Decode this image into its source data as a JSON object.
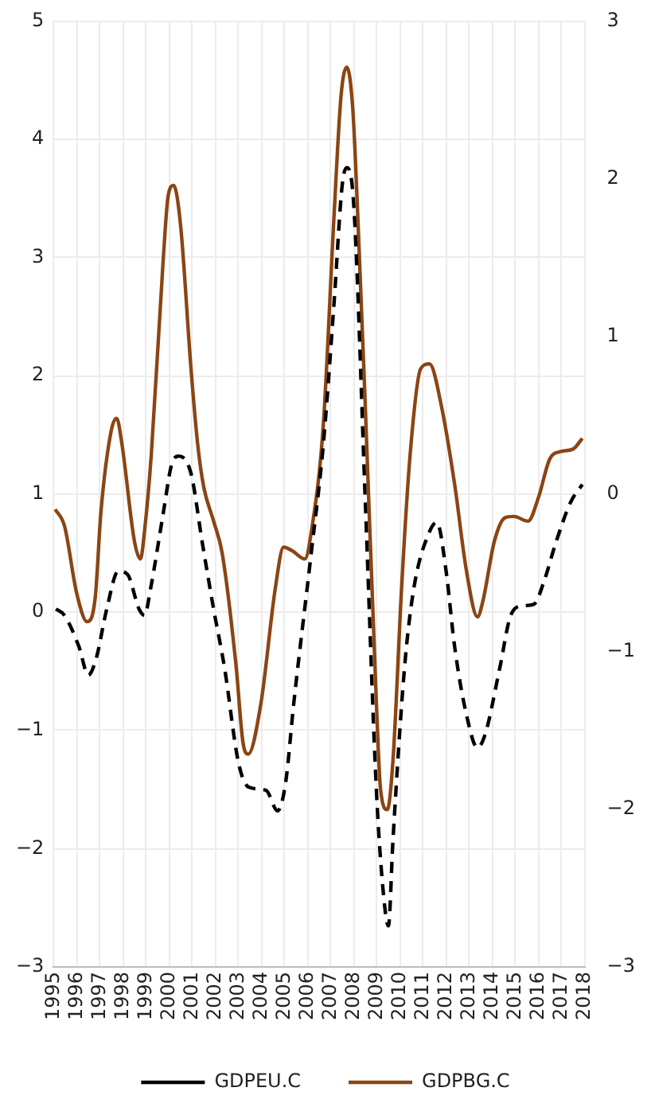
{
  "chart_data": {
    "type": "line",
    "xlim": [
      1995,
      2018
    ],
    "xticks": [
      1995,
      1996,
      1997,
      1998,
      1999,
      2000,
      2001,
      2002,
      2003,
      2004,
      2005,
      2006,
      2007,
      2008,
      2009,
      2010,
      2011,
      2012,
      2013,
      2014,
      2015,
      2016,
      2017,
      2018
    ],
    "ylim": [
      -3,
      5
    ],
    "yticks": [
      5,
      4,
      3,
      2,
      1,
      0,
      {
        "value": -1,
        "label": "−1"
      },
      {
        "value": -2,
        "label": "−2"
      },
      {
        "value": -3,
        "label": "−3"
      }
    ],
    "y2lim": [
      -3,
      3
    ],
    "y2ticks": [
      3,
      2,
      1,
      0,
      {
        "value": -1,
        "label": "−1"
      },
      {
        "value": -2,
        "label": "−2"
      },
      {
        "value": -3,
        "label": "−3"
      }
    ],
    "grid": true,
    "legend": "bottom",
    "marker": "none",
    "series": [
      {
        "name": "GDPEU.C",
        "color": "#000000",
        "axis": "y2",
        "line_style": "dashed",
        "x": [
          1995.1,
          1995.47,
          1996.1,
          1996.5,
          1996.85,
          1997.3,
          1997.8,
          1998.2,
          1998.7,
          1998.94,
          1999.2,
          1999.74,
          2000.1,
          2000.4,
          2000.95,
          2001.44,
          2001.93,
          2002.4,
          2003.0,
          2003.45,
          2004.2,
          2004.7,
          2005.05,
          2005.4,
          2006.17,
          2006.68,
          2007.15,
          2007.5,
          2007.7,
          2008.0,
          2008.5,
          2008.98,
          2009.3,
          2009.5,
          2009.7,
          2010.2,
          2010.6,
          2011.28,
          2011.6,
          2012.0,
          2012.37,
          2012.88,
          2013.36,
          2013.7,
          2014.33,
          2014.8,
          2015.3,
          2015.8,
          2016.25,
          2016.75,
          2017.4,
          2017.9
        ],
        "values": [
          -0.73,
          -0.77,
          -0.97,
          -1.15,
          -1.04,
          -0.73,
          -0.49,
          -0.51,
          -0.73,
          -0.77,
          -0.6,
          -0.13,
          0.18,
          0.24,
          0.13,
          -0.31,
          -0.73,
          -1.1,
          -1.7,
          -1.86,
          -1.88,
          -2.01,
          -1.83,
          -1.33,
          -0.36,
          0.31,
          1.22,
          1.96,
          2.07,
          1.83,
          -0.05,
          -1.88,
          -2.56,
          -2.74,
          -2.19,
          -1.1,
          -0.6,
          -0.24,
          -0.18,
          -0.49,
          -0.97,
          -1.4,
          -1.61,
          -1.52,
          -1.1,
          -0.77,
          -0.71,
          -0.7,
          -0.55,
          -0.31,
          -0.05,
          0.06
        ]
      },
      {
        "name": "GDPBG.C",
        "color": "#8b4513",
        "axis": "y",
        "line_style": "solid",
        "x": [
          1995.07,
          1995.47,
          1996.0,
          1996.45,
          1996.8,
          1997.05,
          1997.5,
          1997.73,
          1997.96,
          1998.5,
          1998.76,
          1998.94,
          1999.23,
          1999.74,
          1999.96,
          2000.2,
          2000.5,
          2000.95,
          2001.24,
          2001.5,
          2001.93,
          2002.3,
          2002.9,
          2003.2,
          2003.43,
          2003.98,
          2004.6,
          2004.96,
          2005.33,
          2005.88,
          2006.17,
          2006.68,
          2007.15,
          2007.45,
          2007.7,
          2007.96,
          2008.17,
          2008.5,
          2008.98,
          2009.16,
          2009.45,
          2009.7,
          2010.07,
          2010.44,
          2010.9,
          2011.28,
          2011.8,
          2012.37,
          2012.88,
          2013.36,
          2013.6,
          2014.09,
          2014.56,
          2014.93,
          2015.55,
          2016.0,
          2016.5,
          2017.0,
          2017.5,
          2017.9
        ],
        "values": [
          0.87,
          0.73,
          0.16,
          -0.08,
          0.12,
          0.85,
          1.54,
          1.64,
          1.42,
          0.6,
          0.45,
          0.69,
          1.33,
          2.96,
          3.52,
          3.61,
          3.27,
          2.06,
          1.42,
          1.06,
          0.77,
          0.5,
          -0.45,
          -1.1,
          -1.2,
          -0.77,
          0.2,
          0.55,
          0.52,
          0.45,
          0.69,
          1.58,
          3.37,
          4.37,
          4.61,
          4.25,
          3.37,
          1.74,
          -0.77,
          -1.5,
          -1.67,
          -1.25,
          0.2,
          1.33,
          2.06,
          2.1,
          1.74,
          1.08,
          0.35,
          -0.04,
          0.1,
          0.6,
          0.8,
          0.81,
          0.77,
          0.97,
          1.3,
          1.36,
          1.38,
          1.47
        ]
      }
    ]
  }
}
